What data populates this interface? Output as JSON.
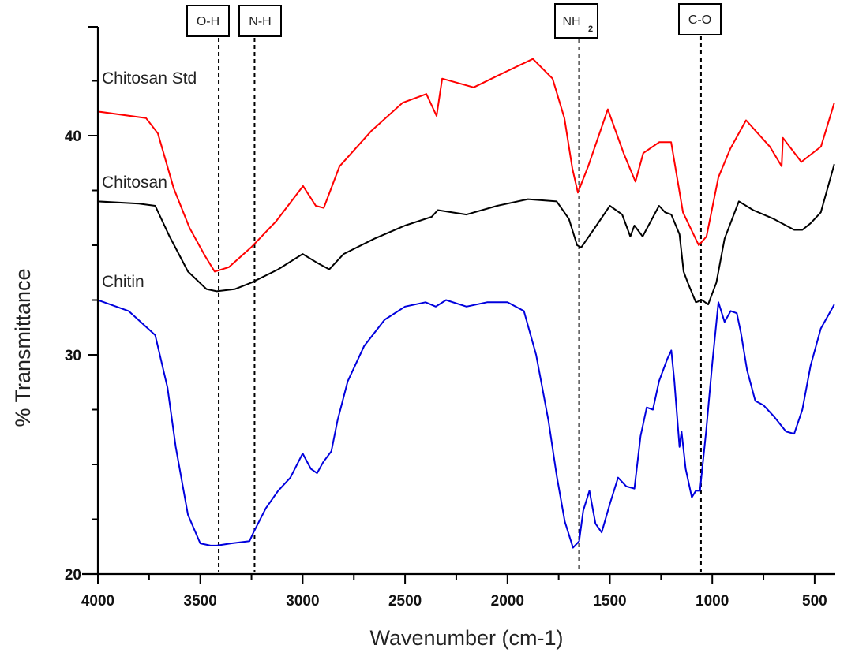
{
  "chart_data": {
    "type": "line",
    "title": "",
    "xlabel": "Wavenumber (cm-1)",
    "ylabel": "% Transmittance",
    "xlim": [
      4000,
      400
    ],
    "ylim": [
      20,
      45
    ],
    "x_inverted": true,
    "grid": false,
    "legend_position": "inline labels (left)",
    "x_ticks": [
      4000,
      3500,
      3000,
      2500,
      2000,
      1500,
      1000,
      500
    ],
    "x_tick_labels": [
      "4000",
      "3500",
      "3000",
      "2500",
      "2000",
      "1500",
      "1000",
      "500"
    ],
    "y_ticks": [
      20,
      30,
      40
    ],
    "y_tick_labels": [
      "20",
      "30",
      "40"
    ],
    "series": [
      {
        "name": "Chitosan Std",
        "color": "#ff0000",
        "label_position": {
          "x": 3980,
          "y": 43.1
        },
        "x": [
          4000,
          3765,
          3707,
          3630,
          3553,
          3476,
          3430,
          3360,
          3252,
          3129,
          2998,
          2936,
          2897,
          2820,
          2666,
          2512,
          2396,
          2346,
          2319,
          2165,
          2011,
          1876,
          1780,
          1722,
          1683,
          1656,
          1606,
          1510,
          1433,
          1375,
          1337,
          1259,
          1201,
          1143,
          1066,
          1028,
          970,
          912,
          835,
          719,
          661,
          655,
          565,
          469,
          404
        ],
        "y": [
          41.1,
          40.8,
          40.1,
          37.6,
          35.8,
          34.5,
          33.8,
          34.0,
          34.9,
          36.1,
          37.7,
          36.8,
          36.7,
          38.6,
          40.2,
          41.5,
          41.9,
          40.9,
          42.6,
          42.2,
          42.9,
          43.5,
          42.6,
          40.8,
          38.5,
          37.4,
          38.6,
          41.2,
          39.2,
          37.9,
          39.2,
          39.7,
          39.7,
          36.5,
          35.0,
          35.4,
          38.1,
          39.4,
          40.7,
          39.5,
          38.6,
          39.9,
          38.8,
          39.5,
          41.5
        ]
      },
      {
        "name": "Chitosan",
        "color": "#000000",
        "label_position": {
          "x": 3980,
          "y": 38.4
        },
        "x": [
          4000,
          3800,
          3720,
          3650,
          3560,
          3470,
          3420,
          3330,
          3250,
          3120,
          3000,
          2930,
          2870,
          2800,
          2650,
          2500,
          2370,
          2340,
          2200,
          2050,
          1900,
          1760,
          1700,
          1660,
          1640,
          1580,
          1500,
          1440,
          1400,
          1380,
          1340,
          1300,
          1260,
          1230,
          1200,
          1160,
          1140,
          1120,
          1080,
          1050,
          1020,
          980,
          940,
          870,
          800,
          700,
          600,
          560,
          520,
          470,
          404
        ],
        "y": [
          37.0,
          36.9,
          36.8,
          35.4,
          33.8,
          33.0,
          32.9,
          33.0,
          33.3,
          33.9,
          34.6,
          34.2,
          33.9,
          34.6,
          35.3,
          35.9,
          36.3,
          36.6,
          36.4,
          36.8,
          37.1,
          37.0,
          36.2,
          35.0,
          34.9,
          35.7,
          36.8,
          36.4,
          35.4,
          35.9,
          35.4,
          36.1,
          36.8,
          36.5,
          36.4,
          35.5,
          33.8,
          33.3,
          32.4,
          32.5,
          32.3,
          33.3,
          35.3,
          37.0,
          36.6,
          36.2,
          35.7,
          35.7,
          36.0,
          36.5,
          38.7
        ]
      },
      {
        "name": "Chitin",
        "color": "#0000dd",
        "label_position": {
          "x": 3980,
          "y": 33.1
        },
        "x": [
          4000,
          3850,
          3720,
          3660,
          3620,
          3560,
          3500,
          3450,
          3420,
          3350,
          3260,
          3240,
          3180,
          3120,
          3060,
          3000,
          2960,
          2930,
          2900,
          2860,
          2830,
          2780,
          2700,
          2600,
          2500,
          2400,
          2350,
          2300,
          2200,
          2100,
          2000,
          1920,
          1860,
          1800,
          1760,
          1720,
          1680,
          1650,
          1630,
          1600,
          1570,
          1540,
          1500,
          1460,
          1420,
          1380,
          1350,
          1320,
          1290,
          1260,
          1220,
          1200,
          1185,
          1160,
          1150,
          1130,
          1100,
          1080,
          1060,
          1030,
          1000,
          970,
          940,
          910,
          880,
          860,
          830,
          790,
          750,
          700,
          640,
          600,
          560,
          520,
          470,
          404
        ],
        "y": [
          32.5,
          32.0,
          30.9,
          28.5,
          25.8,
          22.7,
          21.4,
          21.3,
          21.3,
          21.4,
          21.5,
          21.9,
          23.0,
          23.8,
          24.4,
          25.5,
          24.8,
          24.6,
          25.1,
          25.6,
          27.0,
          28.8,
          30.4,
          31.6,
          32.2,
          32.4,
          32.2,
          32.5,
          32.2,
          32.4,
          32.4,
          32.0,
          30.0,
          27.0,
          24.5,
          22.4,
          21.2,
          21.5,
          22.9,
          23.8,
          22.3,
          21.9,
          23.2,
          24.4,
          24.0,
          23.9,
          26.3,
          27.6,
          27.5,
          28.8,
          29.8,
          30.2,
          28.8,
          25.8,
          26.5,
          24.8,
          23.5,
          23.8,
          23.8,
          26.5,
          29.6,
          32.4,
          31.5,
          32.0,
          31.9,
          31.0,
          29.3,
          27.9,
          27.7,
          27.2,
          26.5,
          26.4,
          27.5,
          29.5,
          31.2,
          32.3
        ]
      }
    ],
    "annotations": [
      {
        "label": "O-H",
        "x": 3410,
        "style": "dashed vertical line"
      },
      {
        "label": "N-H",
        "x": 3235,
        "style": "dashed vertical line"
      },
      {
        "label": "NH2",
        "x": 1650,
        "style": "dashed vertical line"
      },
      {
        "label": "C-O",
        "x": 1055,
        "style": "dashed vertical line"
      }
    ]
  },
  "labels": {
    "xlabel": "Wavenumber (cm-1)",
    "ylabel": "% Transmittance",
    "series": [
      "Chitosan Std",
      "Chitosan",
      "Chitin"
    ],
    "bands": {
      "oh": "O-H",
      "nh": "N-H",
      "nh2_main": "NH",
      "nh2_sub": "2",
      "co": "C-O"
    }
  }
}
